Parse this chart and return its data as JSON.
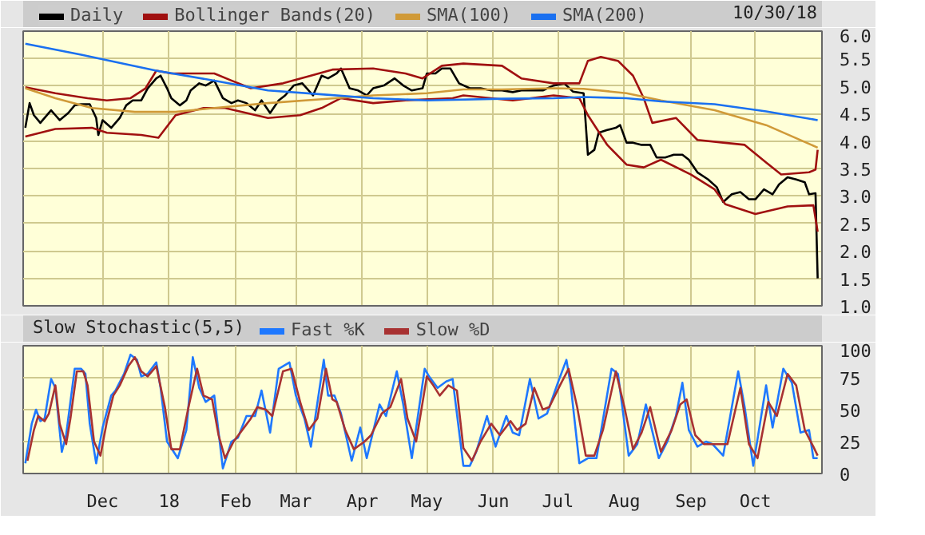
{
  "chart_data": [
    {
      "type": "line",
      "annotations": [
        "10/30/18"
      ],
      "legend": "top",
      "grid": true,
      "tick_labels": "y",
      "xlim": [
        "2017-10-25",
        "2018-11-01"
      ],
      "xticks": [
        {
          "value": "2017-12-01",
          "label": null
        },
        {
          "value": "2018-01-01",
          "label": null
        },
        {
          "value": "2018-02-01",
          "label": null
        },
        {
          "value": "2018-03-01",
          "label": null
        },
        {
          "value": "2018-04-01",
          "label": null
        },
        {
          "value": "2018-05-01",
          "label": null
        },
        {
          "value": "2018-06-01",
          "label": null
        },
        {
          "value": "2018-07-01",
          "label": null
        },
        {
          "value": "2018-08-01",
          "label": null
        },
        {
          "value": "2018-09-01",
          "label": null
        },
        {
          "value": "2018-10-01",
          "label": null
        }
      ],
      "ylim": [
        1.0,
        6.0
      ],
      "yticks": [
        {
          "value": 1.0,
          "label": "1.0"
        },
        {
          "value": 1.5,
          "label": "1.5"
        },
        {
          "value": 2.0,
          "label": "2.0"
        },
        {
          "value": 2.5,
          "label": "2.5"
        },
        {
          "value": 3.0,
          "label": "3.0"
        },
        {
          "value": 3.5,
          "label": "3.5"
        },
        {
          "value": 4.0,
          "label": "4.0"
        },
        {
          "value": 4.5,
          "label": "4.5"
        },
        {
          "value": 5.0,
          "label": "5.0"
        },
        {
          "value": 5.5,
          "label": "5.5"
        },
        {
          "value": 6.0,
          "label": "6.0"
        }
      ],
      "series": [
        {
          "name": "Daily",
          "color": "#000000",
          "x": [
            "2017-10-26",
            "2017-10-28",
            "2017-10-30",
            "2017-11-02",
            "2017-11-07",
            "2017-11-09",
            "2017-11-11",
            "2017-11-15",
            "2017-11-18",
            "2017-11-21",
            "2017-11-25",
            "2017-11-28",
            "2017-11-29",
            "2017-12-01",
            "2017-12-05",
            "2017-12-09",
            "2017-12-12",
            "2017-12-15",
            "2017-12-19",
            "2017-12-22",
            "2017-12-26",
            "2017-12-28",
            "2017-12-31",
            "2018-01-02",
            "2018-01-06",
            "2018-01-09",
            "2018-01-11",
            "2018-01-15",
            "2018-01-18",
            "2018-01-22",
            "2018-01-26",
            "2018-01-30",
            "2018-02-02",
            "2018-02-06",
            "2018-02-10",
            "2018-02-13",
            "2018-02-17",
            "2018-02-21",
            "2018-02-24",
            "2018-02-28",
            "2018-03-04",
            "2018-03-09",
            "2018-03-13",
            "2018-03-16",
            "2018-03-20",
            "2018-03-22",
            "2018-03-26",
            "2018-03-30",
            "2018-04-03",
            "2018-04-06",
            "2018-04-11",
            "2018-04-16",
            "2018-04-20",
            "2018-04-24",
            "2018-04-29",
            "2018-05-01",
            "2018-05-05",
            "2018-05-08",
            "2018-05-12",
            "2018-05-16",
            "2018-05-21",
            "2018-05-26",
            "2018-05-31",
            "2018-06-05",
            "2018-06-10",
            "2018-06-14",
            "2018-06-19",
            "2018-06-24",
            "2018-06-29",
            "2018-07-04",
            "2018-07-08",
            "2018-07-13",
            "2018-07-15",
            "2018-07-18",
            "2018-07-20",
            "2018-07-24",
            "2018-07-28",
            "2018-07-30",
            "2018-08-02",
            "2018-08-05",
            "2018-08-09",
            "2018-08-13",
            "2018-08-16",
            "2018-08-20",
            "2018-08-24",
            "2018-08-28",
            "2018-08-31",
            "2018-09-04",
            "2018-09-09",
            "2018-09-13",
            "2018-09-16",
            "2018-09-20",
            "2018-09-24",
            "2018-09-28",
            "2018-10-01",
            "2018-10-05",
            "2018-10-09",
            "2018-10-12",
            "2018-10-16",
            "2018-10-20",
            "2018-10-24",
            "2018-10-26",
            "2018-10-29",
            "2018-10-30"
          ],
          "values": [
            4.24,
            4.69,
            4.47,
            4.33,
            4.56,
            4.47,
            4.38,
            4.51,
            4.65,
            4.67,
            4.67,
            4.42,
            4.11,
            4.38,
            4.24,
            4.42,
            4.65,
            4.74,
            4.74,
            4.96,
            5.14,
            5.19,
            4.96,
            4.78,
            4.65,
            4.74,
            4.92,
            5.05,
            5.01,
            5.1,
            4.78,
            4.69,
            4.74,
            4.69,
            4.56,
            4.74,
            4.51,
            4.74,
            4.83,
            5.01,
            5.05,
            4.83,
            5.19,
            5.14,
            5.23,
            5.32,
            4.96,
            4.92,
            4.83,
            4.96,
            5.01,
            5.14,
            5.01,
            4.92,
            4.96,
            5.23,
            5.23,
            5.32,
            5.32,
            5.05,
            4.96,
            4.96,
            4.92,
            4.92,
            4.89,
            4.92,
            4.92,
            4.92,
            5.01,
            5.05,
            4.9,
            4.87,
            3.75,
            3.84,
            4.15,
            4.2,
            4.24,
            4.29,
            3.97,
            3.97,
            3.93,
            3.93,
            3.7,
            3.7,
            3.75,
            3.75,
            3.66,
            3.43,
            3.3,
            3.16,
            2.89,
            3.03,
            3.07,
            2.94,
            2.94,
            3.12,
            3.03,
            3.21,
            3.34,
            3.3,
            3.25,
            3.03,
            3.05,
            1.5
          ]
        },
        {
          "name": "Bollinger Bands(20)",
          "color": "#a01010",
          "x": [
            "2017-10-26",
            "2017-11-09",
            "2017-11-24",
            "2017-12-03",
            "2017-12-14",
            "2017-12-21",
            "2017-12-26",
            "2018-01-02",
            "2018-01-15",
            "2018-01-22",
            "2018-01-30",
            "2018-02-08",
            "2018-02-23",
            "2018-03-08",
            "2018-03-18",
            "2018-04-06",
            "2018-04-21",
            "2018-04-29",
            "2018-05-08",
            "2018-05-18",
            "2018-06-05",
            "2018-06-14",
            "2018-06-29",
            "2018-07-11",
            "2018-07-15",
            "2018-07-21",
            "2018-07-29",
            "2018-08-05",
            "2018-08-10",
            "2018-08-14",
            "2018-08-25",
            "2018-09-04",
            "2018-09-16",
            "2018-09-26",
            "2018-10-06",
            "2018-10-13",
            "2018-10-26",
            "2018-10-29",
            "2018-10-30"
          ],
          "values": [
            4.98,
            4.87,
            4.78,
            4.74,
            4.78,
            4.96,
            5.28,
            5.23,
            5.23,
            5.23,
            5.1,
            4.96,
            5.05,
            5.19,
            5.3,
            5.32,
            5.23,
            5.14,
            5.37,
            5.41,
            5.37,
            5.14,
            5.05,
            5.05,
            5.46,
            5.53,
            5.46,
            5.19,
            4.78,
            4.33,
            4.42,
            4.02,
            3.97,
            3.93,
            3.61,
            3.39,
            3.43,
            3.48,
            3.84
          ]
        },
        {
          "color": "#a01010",
          "x": [
            "2017-10-26",
            "2017-11-09",
            "2017-11-26",
            "2017-12-03",
            "2017-12-19",
            "2017-12-27",
            "2018-01-04",
            "2018-01-17",
            "2018-01-27",
            "2018-02-06",
            "2018-02-16",
            "2018-03-03",
            "2018-03-13",
            "2018-03-22",
            "2018-04-06",
            "2018-04-21",
            "2018-05-13",
            "2018-05-18",
            "2018-05-31",
            "2018-06-10",
            "2018-06-29",
            "2018-07-11",
            "2018-07-15",
            "2018-07-24",
            "2018-08-02",
            "2018-08-10",
            "2018-08-18",
            "2018-09-01",
            "2018-09-12",
            "2018-09-17",
            "2018-10-01",
            "2018-10-16",
            "2018-10-28",
            "2018-10-30"
          ],
          "values": [
            4.08,
            4.22,
            4.24,
            4.15,
            4.11,
            4.06,
            4.47,
            4.6,
            4.6,
            4.51,
            4.42,
            4.47,
            4.6,
            4.78,
            4.69,
            4.74,
            4.78,
            4.83,
            4.78,
            4.74,
            4.83,
            4.78,
            4.47,
            3.93,
            3.57,
            3.52,
            3.66,
            3.39,
            3.12,
            2.85,
            2.67,
            2.81,
            2.83,
            2.35
          ]
        },
        {
          "name": "SMA(100)",
          "color": "#d09a38",
          "x": [
            "2017-10-26",
            "2017-11-09",
            "2017-11-26",
            "2017-12-16",
            "2018-01-04",
            "2018-01-22",
            "2018-02-16",
            "2018-03-13",
            "2018-04-06",
            "2018-05-01",
            "2018-05-18",
            "2018-06-05",
            "2018-06-29",
            "2018-07-13",
            "2018-08-02",
            "2018-08-18",
            "2018-09-12",
            "2018-10-06",
            "2018-10-30"
          ],
          "values": [
            4.96,
            4.78,
            4.6,
            4.53,
            4.53,
            4.6,
            4.69,
            4.76,
            4.83,
            4.87,
            4.94,
            4.94,
            4.96,
            4.95,
            4.87,
            4.74,
            4.56,
            4.29,
            3.88
          ]
        },
        {
          "name": "SMA(200)",
          "color": "#1a70f0",
          "x": [
            "2017-10-26",
            "2017-11-21",
            "2017-12-26",
            "2018-01-22",
            "2018-02-16",
            "2018-03-13",
            "2018-04-06",
            "2018-05-01",
            "2018-06-05",
            "2018-06-29",
            "2018-07-13",
            "2018-08-02",
            "2018-08-18",
            "2018-09-12",
            "2018-10-06",
            "2018-10-30"
          ],
          "values": [
            5.77,
            5.57,
            5.28,
            5.1,
            4.92,
            4.85,
            4.78,
            4.74,
            4.77,
            4.78,
            4.8,
            4.78,
            4.72,
            4.67,
            4.54,
            4.38
          ]
        }
      ]
    },
    {
      "type": "line",
      "title": "Slow Stochastic(5,5)",
      "legend": "top",
      "grid": true,
      "xlim": [
        "2017-10-25",
        "2018-11-01"
      ],
      "xticks": [
        {
          "value": "2017-12-01",
          "label": "Dec"
        },
        {
          "value": "2018-01-01",
          "label": "18"
        },
        {
          "value": "2018-02-01",
          "label": "Feb"
        },
        {
          "value": "2018-03-01",
          "label": "Mar"
        },
        {
          "value": "2018-04-01",
          "label": "Apr"
        },
        {
          "value": "2018-05-01",
          "label": "May"
        },
        {
          "value": "2018-06-01",
          "label": "Jun"
        },
        {
          "value": "2018-07-01",
          "label": "Jul"
        },
        {
          "value": "2018-08-01",
          "label": "Aug"
        },
        {
          "value": "2018-09-01",
          "label": "Sep"
        },
        {
          "value": "2018-10-01",
          "label": "Oct"
        }
      ],
      "ylim": [
        0,
        100
      ],
      "yticks": [
        0,
        25,
        50,
        75,
        100
      ],
      "series": [
        {
          "name": "Fast %K",
          "color": "#1e78ff",
          "x": [
            "2017-10-26",
            "2017-10-29",
            "2017-10-31",
            "2017-11-02",
            "2017-11-04",
            "2017-11-07",
            "2017-11-09",
            "2017-11-12",
            "2017-11-14",
            "2017-11-18",
            "2017-11-21",
            "2017-11-23",
            "2017-11-25",
            "2017-11-28",
            "2017-12-01",
            "2017-12-05",
            "2017-12-07",
            "2017-12-11",
            "2017-12-14",
            "2017-12-17",
            "2017-12-19",
            "2017-12-22",
            "2017-12-26",
            "2017-12-28",
            "2017-12-31",
            "2018-01-05",
            "2018-01-09",
            "2018-01-12",
            "2018-01-15",
            "2018-01-18",
            "2018-01-22",
            "2018-01-26",
            "2018-01-30",
            "2018-02-02",
            "2018-02-06",
            "2018-02-10",
            "2018-02-13",
            "2018-02-17",
            "2018-02-21",
            "2018-02-26",
            "2018-03-01",
            "2018-03-05",
            "2018-03-08",
            "2018-03-14",
            "2018-03-16",
            "2018-03-19",
            "2018-03-22",
            "2018-03-27",
            "2018-03-31",
            "2018-04-03",
            "2018-04-09",
            "2018-04-12",
            "2018-04-17",
            "2018-04-20",
            "2018-04-24",
            "2018-04-30",
            "2018-05-02",
            "2018-05-06",
            "2018-05-10",
            "2018-05-13",
            "2018-05-18",
            "2018-05-21",
            "2018-05-24",
            "2018-05-29",
            "2018-06-02",
            "2018-06-07",
            "2018-06-10",
            "2018-06-13",
            "2018-06-18",
            "2018-06-22",
            "2018-06-26",
            "2018-07-01",
            "2018-07-05",
            "2018-07-07",
            "2018-07-11",
            "2018-07-15",
            "2018-07-19",
            "2018-07-26",
            "2018-07-29",
            "2018-08-03",
            "2018-08-07",
            "2018-08-11",
            "2018-08-17",
            "2018-08-21",
            "2018-08-25",
            "2018-08-28",
            "2018-08-31",
            "2018-09-04",
            "2018-09-08",
            "2018-09-11",
            "2018-09-16",
            "2018-09-23",
            "2018-09-26",
            "2018-09-30",
            "2018-10-06",
            "2018-10-09",
            "2018-10-14",
            "2018-10-18",
            "2018-10-22",
            "2018-10-26",
            "2018-10-28",
            "2018-10-30"
          ],
          "values": [
            8,
            39,
            50,
            41,
            43,
            74,
            67,
            17,
            30,
            82,
            82,
            78,
            39,
            8,
            36,
            61,
            65,
            78,
            93,
            89,
            76,
            78,
            87,
            67,
            25,
            12,
            34,
            91,
            67,
            56,
            61,
            4,
            25,
            28,
            45,
            45,
            65,
            32,
            82,
            87,
            61,
            43,
            21,
            89,
            61,
            61,
            47,
            10,
            36,
            12,
            54,
            45,
            80,
            54,
            12,
            82,
            76,
            67,
            72,
            74,
            6,
            6,
            17,
            45,
            21,
            45,
            32,
            30,
            74,
            43,
            47,
            71,
            89,
            69,
            8,
            12,
            12,
            82,
            78,
            14,
            23,
            54,
            12,
            25,
            45,
            71,
            34,
            21,
            25,
            23,
            14,
            80,
            52,
            6,
            69,
            36,
            82,
            71,
            32,
            34,
            12,
            12
          ]
        },
        {
          "name": "Slow %D",
          "color": "#a83232",
          "x": [
            "2017-10-27",
            "2017-10-30",
            "2017-11-01",
            "2017-11-04",
            "2017-11-06",
            "2017-11-09",
            "2017-11-11",
            "2017-11-14",
            "2017-11-16",
            "2017-11-19",
            "2017-11-22",
            "2017-11-24",
            "2017-11-27",
            "2017-11-30",
            "2017-12-03",
            "2017-12-06",
            "2017-12-09",
            "2017-12-13",
            "2017-12-16",
            "2017-12-19",
            "2017-12-22",
            "2017-12-26",
            "2017-12-30",
            "2018-01-02",
            "2018-01-06",
            "2018-01-10",
            "2018-01-14",
            "2018-01-17",
            "2018-01-21",
            "2018-01-24",
            "2018-01-27",
            "2018-01-31",
            "2018-02-04",
            "2018-02-08",
            "2018-02-11",
            "2018-02-15",
            "2018-02-18",
            "2018-02-23",
            "2018-02-27",
            "2018-03-03",
            "2018-03-07",
            "2018-03-11",
            "2018-03-15",
            "2018-03-18",
            "2018-03-20",
            "2018-03-24",
            "2018-03-28",
            "2018-04-02",
            "2018-04-05",
            "2018-04-10",
            "2018-04-14",
            "2018-04-19",
            "2018-04-22",
            "2018-04-26",
            "2018-05-01",
            "2018-05-04",
            "2018-05-07",
            "2018-05-11",
            "2018-05-15",
            "2018-05-18",
            "2018-05-22",
            "2018-05-26",
            "2018-05-31",
            "2018-06-04",
            "2018-06-09",
            "2018-06-12",
            "2018-06-16",
            "2018-06-20",
            "2018-06-24",
            "2018-06-27",
            "2018-07-02",
            "2018-07-06",
            "2018-07-10",
            "2018-07-14",
            "2018-07-18",
            "2018-07-22",
            "2018-07-28",
            "2018-08-01",
            "2018-08-05",
            "2018-08-09",
            "2018-08-13",
            "2018-08-18",
            "2018-08-23",
            "2018-08-27",
            "2018-08-30",
            "2018-09-03",
            "2018-09-07",
            "2018-09-11",
            "2018-09-18",
            "2018-09-24",
            "2018-09-28",
            "2018-10-02",
            "2018-10-07",
            "2018-10-11",
            "2018-10-16",
            "2018-10-20",
            "2018-10-24",
            "2018-10-28",
            "2018-10-30"
          ],
          "values": [
            10,
            34,
            45,
            41,
            47,
            69,
            39,
            23,
            43,
            80,
            80,
            69,
            25,
            14,
            41,
            61,
            69,
            84,
            91,
            80,
            76,
            84,
            52,
            19,
            19,
            52,
            82,
            61,
            58,
            30,
            12,
            25,
            34,
            43,
            52,
            50,
            45,
            80,
            82,
            56,
            34,
            43,
            82,
            58,
            56,
            34,
            19,
            25,
            30,
            47,
            52,
            74,
            43,
            25,
            76,
            69,
            61,
            69,
            65,
            20,
            10,
            25,
            39,
            30,
            41,
            34,
            39,
            67,
            50,
            52,
            69,
            82,
            52,
            14,
            14,
            34,
            80,
            52,
            19,
            32,
            52,
            17,
            34,
            54,
            58,
            30,
            23,
            23,
            23,
            67,
            23,
            12,
            56,
            45,
            78,
            69,
            34,
            21,
            14
          ]
        }
      ]
    }
  ]
}
